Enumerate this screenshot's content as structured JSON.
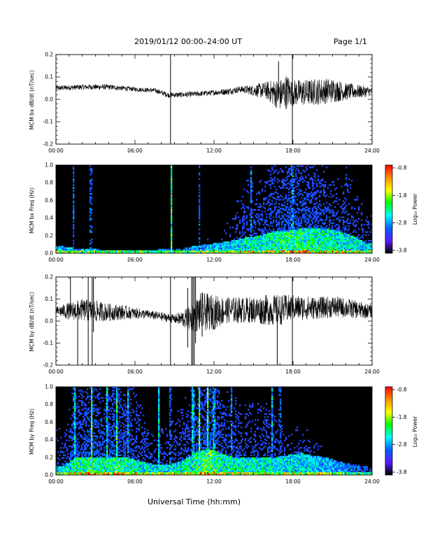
{
  "header": {
    "title": "2019/01/12  00:00–24:00 UT",
    "page": "Page 1/1"
  },
  "x_axis_label": "Universal Time (hh:mm)",
  "colorbar": {
    "label": "Log₁₀ Power",
    "ticks": [
      "-0.8",
      "-1.8",
      "-2.8",
      "-3.8"
    ],
    "colors": [
      "#ff0000",
      "#ff8c00",
      "#ffff00",
      "#00ff00",
      "#00ffff",
      "#0060ff",
      "#5a1cff",
      "#000000"
    ]
  },
  "chart_data": [
    {
      "type": "line",
      "ylabel": "MCM bx dB/dt (nT/sec)",
      "xlim": [
        0,
        24
      ],
      "ylim": [
        -0.2,
        0.2
      ],
      "xticks": [
        "00:00",
        "06:00",
        "12:00",
        "18:00",
        "24:00"
      ],
      "yticks": [
        "-0.2",
        "-0.1",
        "0.0",
        "0.1",
        "0.2"
      ],
      "series": [
        {
          "color": "#000000",
          "x": [
            0,
            2,
            4,
            6,
            7.5,
            8.5,
            9.5,
            11,
            12,
            13,
            14,
            15,
            16,
            16.5,
            17,
            17.5,
            18,
            19,
            20,
            21,
            22,
            23,
            24
          ],
          "center": [
            0.05,
            0.055,
            0.055,
            0.045,
            0.04,
            0.02,
            0.02,
            0.025,
            0.03,
            0.035,
            0.045,
            0.04,
            0.04,
            0.03,
            0.02,
            0.035,
            0.03,
            0.03,
            0.035,
            0.04,
            0.035,
            0.035,
            0.035
          ],
          "amplitude": [
            0.012,
            0.012,
            0.012,
            0.01,
            0.01,
            0.012,
            0.012,
            0.012,
            0.012,
            0.015,
            0.015,
            0.025,
            0.04,
            0.06,
            0.07,
            0.08,
            0.06,
            0.06,
            0.06,
            0.055,
            0.04,
            0.03,
            0.02
          ]
        }
      ],
      "spikes": [
        {
          "x": 8.7,
          "ymin": -0.2,
          "ymax": 0.2
        },
        {
          "x": 16.9,
          "ymin": 0.0,
          "ymax": 0.17
        },
        {
          "x": 17.95,
          "ymin": -0.2,
          "ymax": 0.2
        }
      ]
    },
    {
      "type": "heatmap",
      "ylabel": "MCM bx Freq (Hz)",
      "xlim": [
        0,
        24
      ],
      "ylim": [
        0,
        1.0
      ],
      "xticks": [
        "00:00",
        "06:00",
        "12:00",
        "18:00",
        "24:00"
      ],
      "yticks": [
        "0.0",
        "0.2",
        "0.4",
        "0.6",
        "0.8",
        "1.0"
      ],
      "colorbar_range": [
        -3.8,
        -0.8
      ],
      "base_intensity": [
        0.45,
        0.4,
        0.4,
        0.4,
        0.35,
        0.35,
        0.35,
        0.3,
        0.35,
        0.35,
        0.4,
        0.45,
        0.45,
        0.5,
        0.55,
        0.55,
        0.6,
        0.65,
        0.65,
        0.6,
        0.6,
        0.55,
        0.55,
        0.5
      ],
      "band_top": [
        0.08,
        0.05,
        0.05,
        0.04,
        0.04,
        0.04,
        0.04,
        0.04,
        0.05,
        0.05,
        0.08,
        0.1,
        0.12,
        0.15,
        0.18,
        0.2,
        0.25,
        0.25,
        0.28,
        0.28,
        0.28,
        0.25,
        0.2,
        0.12
      ],
      "stripes": [
        {
          "x": 1.3,
          "intensity": 0.5
        },
        {
          "x": 2.65,
          "intensity": 0.6
        },
        {
          "x": 8.75,
          "intensity": 0.85
        },
        {
          "x": 17.95,
          "intensity": 0.75
        },
        {
          "x": 10.9,
          "intensity": 0.4
        },
        {
          "x": 14.8,
          "intensity": 0.45
        },
        {
          "x": 22.0,
          "intensity": 0.4
        }
      ]
    },
    {
      "type": "line",
      "ylabel": "MCM by dB/dt (nT/sec)",
      "xlim": [
        0,
        24
      ],
      "ylim": [
        -0.2,
        0.2
      ],
      "xticks": [
        "00:00",
        "06:00",
        "12:00",
        "18:00",
        "24:00"
      ],
      "yticks": [
        "-0.2",
        "-0.1",
        "0.0",
        "0.1",
        "0.2"
      ],
      "series": [
        {
          "color": "#000000",
          "x": [
            0,
            1,
            2,
            3,
            4,
            5,
            6,
            7,
            8,
            9,
            10,
            10.5,
            11,
            12,
            13,
            14,
            15,
            16,
            17,
            18,
            19,
            20,
            21,
            22,
            23,
            24
          ],
          "center": [
            0.045,
            0.045,
            0.05,
            0.045,
            0.04,
            0.04,
            0.035,
            0.03,
            0.02,
            0.01,
            0.01,
            0.02,
            0.04,
            0.04,
            0.05,
            0.05,
            0.05,
            0.05,
            0.05,
            0.06,
            0.06,
            0.06,
            0.065,
            0.06,
            0.05,
            0.045
          ],
          "amplitude": [
            0.02,
            0.04,
            0.05,
            0.05,
            0.04,
            0.035,
            0.025,
            0.02,
            0.02,
            0.02,
            0.05,
            0.07,
            0.09,
            0.08,
            0.06,
            0.06,
            0.06,
            0.07,
            0.07,
            0.06,
            0.055,
            0.05,
            0.05,
            0.045,
            0.04,
            0.03
          ]
        }
      ],
      "spikes": [
        {
          "x": 1.1,
          "ymin": 0.02,
          "ymax": 0.2
        },
        {
          "x": 1.65,
          "ymin": -0.2,
          "ymax": 0.09
        },
        {
          "x": 2.45,
          "ymin": -0.2,
          "ymax": 0.2
        },
        {
          "x": 2.75,
          "ymin": -0.2,
          "ymax": 0.2
        },
        {
          "x": 2.85,
          "ymin": -0.05,
          "ymax": 0.2
        },
        {
          "x": 8.7,
          "ymin": -0.2,
          "ymax": 0.2
        },
        {
          "x": 10.0,
          "ymin": -0.12,
          "ymax": 0.15
        },
        {
          "x": 10.3,
          "ymin": -0.2,
          "ymax": 0.2
        },
        {
          "x": 10.4,
          "ymin": -0.2,
          "ymax": 0.2
        },
        {
          "x": 10.5,
          "ymin": -0.2,
          "ymax": 0.2
        },
        {
          "x": 10.6,
          "ymin": -0.1,
          "ymax": 0.2
        },
        {
          "x": 11.1,
          "ymin": -0.07,
          "ymax": 0.13
        },
        {
          "x": 16.8,
          "ymin": -0.2,
          "ymax": 0.03
        },
        {
          "x": 17.95,
          "ymin": -0.2,
          "ymax": 0.2
        }
      ]
    },
    {
      "type": "heatmap",
      "ylabel": "MCM by Freq (Hz)",
      "xlim": [
        0,
        24
      ],
      "ylim": [
        0,
        1.0
      ],
      "xticks": [
        "00:00",
        "06:00",
        "12:00",
        "18:00",
        "24:00"
      ],
      "yticks": [
        "0.0",
        "0.2",
        "0.4",
        "0.6",
        "0.8",
        "1.0"
      ],
      "colorbar_range": [
        -3.8,
        -0.8
      ],
      "base_intensity": [
        0.5,
        0.6,
        0.65,
        0.6,
        0.65,
        0.6,
        0.55,
        0.5,
        0.5,
        0.55,
        0.6,
        0.7,
        0.6,
        0.55,
        0.55,
        0.55,
        0.55,
        0.5,
        0.5,
        0.5,
        0.45,
        0.4,
        0.35,
        0.3
      ],
      "band_top": [
        0.1,
        0.2,
        0.2,
        0.2,
        0.2,
        0.2,
        0.15,
        0.12,
        0.12,
        0.15,
        0.25,
        0.3,
        0.25,
        0.2,
        0.2,
        0.2,
        0.2,
        0.22,
        0.25,
        0.22,
        0.2,
        0.15,
        0.12,
        0.1
      ],
      "stripes": [
        {
          "x": 1.4,
          "intensity": 0.85
        },
        {
          "x": 2.7,
          "intensity": 0.9
        },
        {
          "x": 3.9,
          "intensity": 0.7
        },
        {
          "x": 4.6,
          "intensity": 0.85
        },
        {
          "x": 5.5,
          "intensity": 0.65
        },
        {
          "x": 7.8,
          "intensity": 0.6
        },
        {
          "x": 8.7,
          "intensity": 0.6
        },
        {
          "x": 10.4,
          "intensity": 0.9
        },
        {
          "x": 10.9,
          "intensity": 0.95
        },
        {
          "x": 11.5,
          "intensity": 0.9
        },
        {
          "x": 12.0,
          "intensity": 0.85
        },
        {
          "x": 13.3,
          "intensity": 0.55
        },
        {
          "x": 16.4,
          "intensity": 0.55
        },
        {
          "x": 17.0,
          "intensity": 0.55
        }
      ]
    }
  ]
}
